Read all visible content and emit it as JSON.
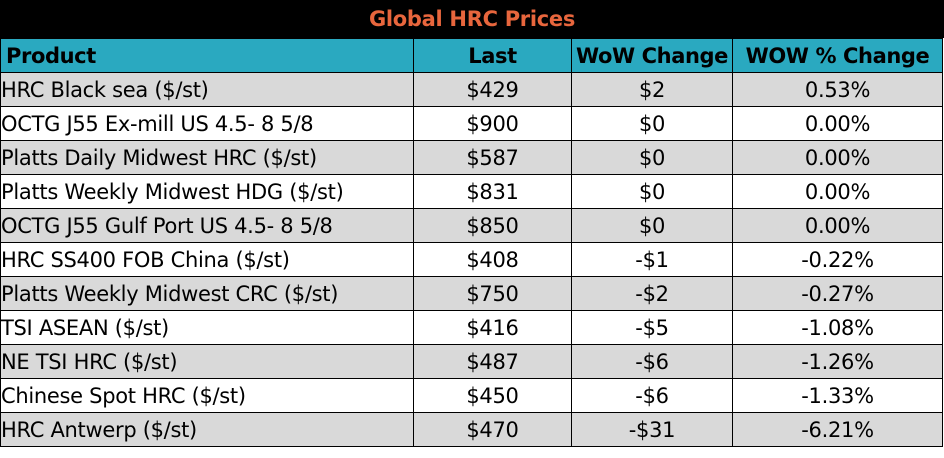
{
  "title": "Global HRC Prices",
  "colors": {
    "title_background": "#000000",
    "title_text": "#e8663d",
    "header_background": "#2aa9c0",
    "shaded_row": "#d9d9d9",
    "plain_row": "#ffffff"
  },
  "table": {
    "headers": {
      "product": "Product",
      "last": "Last",
      "wow_change": "WoW Change",
      "wow_pct_change": "WOW % Change"
    },
    "rows": [
      {
        "product": "HRC Black sea ($/st)",
        "last": "$429",
        "wow_change": "$2",
        "wow_pct_change": "0.53%"
      },
      {
        "product": "OCTG J55 Ex-mill US 4.5- 8 5/8",
        "last": "$900",
        "wow_change": "$0",
        "wow_pct_change": "0.00%"
      },
      {
        "product": "Platts Daily Midwest HRC ($/st)",
        "last": "$587",
        "wow_change": "$0",
        "wow_pct_change": "0.00%"
      },
      {
        "product": "Platts Weekly Midwest HDG ($/st)",
        "last": "$831",
        "wow_change": "$0",
        "wow_pct_change": "0.00%"
      },
      {
        "product": "OCTG J55 Gulf Port US 4.5- 8 5/8",
        "last": "$850",
        "wow_change": "$0",
        "wow_pct_change": "0.00%"
      },
      {
        "product": "HRC SS400 FOB China ($/st)",
        "last": "$408",
        "wow_change": "-$1",
        "wow_pct_change": "-0.22%"
      },
      {
        "product": "Platts Weekly Midwest CRC ($/st)",
        "last": "$750",
        "wow_change": "-$2",
        "wow_pct_change": "-0.27%"
      },
      {
        "product": "TSI ASEAN ($/st)",
        "last": "$416",
        "wow_change": "-$5",
        "wow_pct_change": "-1.08%"
      },
      {
        "product": "NE TSI HRC ($/st)",
        "last": "$487",
        "wow_change": "-$6",
        "wow_pct_change": "-1.26%"
      },
      {
        "product": "Chinese Spot HRC ($/st)",
        "last": "$450",
        "wow_change": "-$6",
        "wow_pct_change": "-1.33%"
      },
      {
        "product": "HRC Antwerp ($/st)",
        "last": "$470",
        "wow_change": "-$31",
        "wow_pct_change": "-6.21%"
      }
    ]
  }
}
